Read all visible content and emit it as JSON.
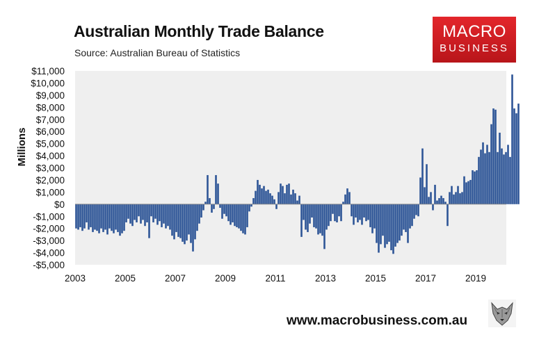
{
  "header": {
    "title": "Australian Monthly Trade Balance",
    "subtitle": "Source: Australian Bureau of Statistics"
  },
  "logo": {
    "line1": "MACRO",
    "line2": "BUSINESS",
    "color": "#d6191f"
  },
  "footer": {
    "url": "www.macrobusiness.com.au",
    "mascot_icon": "wolf-head-icon"
  },
  "chart_data": {
    "type": "bar",
    "title": "Australian Monthly Trade Balance",
    "ylabel": "Millions",
    "xlabel": "",
    "ylim": [
      -5000,
      11000
    ],
    "y_ticks": [
      11000,
      10000,
      9000,
      8000,
      7000,
      6000,
      5000,
      4000,
      3000,
      2000,
      1000,
      0,
      -1000,
      -2000,
      -3000,
      -4000,
      -5000
    ],
    "y_tick_labels": [
      "$11,000",
      "$10,000",
      "$9,000",
      "$8,000",
      "$7,000",
      "$6,000",
      "$5,000",
      "$4,000",
      "$3,000",
      "$2,000",
      "$1,000",
      "$0",
      "-$1,000",
      "-$2,000",
      "-$3,000",
      "-$4,000",
      "-$5,000"
    ],
    "x_tick_labels": [
      "2003",
      "2005",
      "2007",
      "2009",
      "2011",
      "2013",
      "2015",
      "2017",
      "2019"
    ],
    "x_start": "2003-01",
    "bar_color": "#2e5597",
    "plot_background": "#efefef",
    "grid": false,
    "values": [
      -2000,
      -2100,
      -1900,
      -2200,
      -2000,
      -1500,
      -2100,
      -1900,
      -2300,
      -2100,
      -2200,
      -2400,
      -2000,
      -2300,
      -2100,
      -2500,
      -2000,
      -2200,
      -2400,
      -2100,
      -2300,
      -2600,
      -2400,
      -2200,
      -1500,
      -1200,
      -1600,
      -1800,
      -1300,
      -1500,
      -1000,
      -1600,
      -1300,
      -1800,
      -1500,
      -2800,
      -1000,
      -1500,
      -1200,
      -1700,
      -1400,
      -1900,
      -1600,
      -2000,
      -1800,
      -2100,
      -2600,
      -2900,
      -2300,
      -2700,
      -2800,
      -3100,
      -3300,
      -3000,
      -2500,
      -3200,
      -3900,
      -2900,
      -2200,
      -1600,
      -1100,
      -500,
      200,
      2400,
      500,
      -700,
      -400,
      2400,
      1700,
      -300,
      -1200,
      -800,
      -1000,
      -1400,
      -1700,
      -1500,
      -1800,
      -1900,
      -2000,
      -2200,
      -2400,
      -2500,
      -1900,
      -600,
      -200,
      500,
      1100,
      2000,
      1600,
      1300,
      1500,
      1100,
      1200,
      900,
      700,
      400,
      -400,
      1000,
      1700,
      1500,
      900,
      1600,
      1700,
      800,
      1200,
      900,
      300,
      700,
      -2700,
      -1300,
      -2100,
      -2300,
      -1600,
      -1100,
      -1900,
      -2000,
      -2500,
      -2400,
      -2600,
      -3700,
      -2100,
      -1800,
      -1400,
      -800,
      -1400,
      -1500,
      -1000,
      -1400,
      200,
      800,
      1300,
      1000,
      -1000,
      -1700,
      -1100,
      -1500,
      -1300,
      -1700,
      -1100,
      -1400,
      -1300,
      -1900,
      -2400,
      -2000,
      -3200,
      -4000,
      -3300,
      -2600,
      -3600,
      -3300,
      -3100,
      -3800,
      -4100,
      -3500,
      -3200,
      -3000,
      -2600,
      -2100,
      -2300,
      -3200,
      -2000,
      -1800,
      -1200,
      -900,
      -1000,
      2200,
      4600,
      1400,
      3300,
      600,
      1000,
      -500,
      1600,
      300,
      500,
      700,
      500,
      200,
      -1800,
      1000,
      1500,
      800,
      1000,
      1500,
      900,
      1000,
      2300,
      1800,
      1900,
      2000,
      2800,
      2700,
      2800,
      3900,
      4500,
      5100,
      4200,
      4900,
      4300,
      6600,
      7900,
      7800,
      4300,
      5900,
      4600,
      4100,
      4300,
      4900,
      3900,
      10700,
      7900,
      7500,
      8300
    ]
  }
}
